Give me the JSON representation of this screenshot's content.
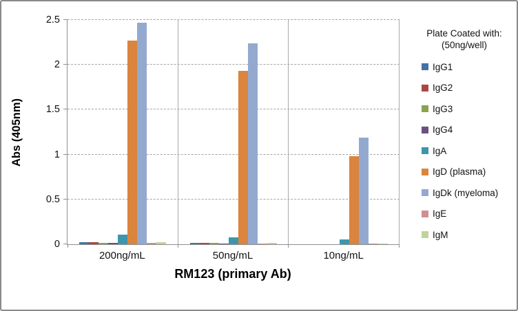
{
  "chart_data": {
    "type": "bar",
    "title": "",
    "xlabel": "RM123 (primary Ab)",
    "ylabel": "Abs (405nm)",
    "ylim": [
      0,
      2.5
    ],
    "ytick_values": [
      0,
      0.5,
      1,
      1.5,
      2,
      2.5
    ],
    "grid": {
      "horizontal": "dashed",
      "vertical_category_separators": true
    },
    "legend": {
      "position": "right",
      "title_line1": "Plate Coated with:",
      "title_line2": "(50ng/well)"
    },
    "categories": [
      "200ng/mL",
      "50ng/mL",
      "10ng/mL"
    ],
    "series": [
      {
        "name": "IgG1",
        "color": "#4572A7",
        "values": [
          0.02,
          0.015,
          0
        ]
      },
      {
        "name": "IgG2",
        "color": "#AA4643",
        "values": [
          0.02,
          0.012,
          0
        ]
      },
      {
        "name": "IgG3",
        "color": "#89A54E",
        "values": [
          0.015,
          0.012,
          0
        ]
      },
      {
        "name": "IgG4",
        "color": "#6B5181",
        "values": [
          0.012,
          0.006,
          0
        ]
      },
      {
        "name": "IgA",
        "color": "#3D96AE",
        "values": [
          0.11,
          0.08,
          0.05
        ]
      },
      {
        "name": "IgD (plasma)",
        "color": "#DB843D",
        "values": [
          2.27,
          1.93,
          0.98
        ]
      },
      {
        "name": "IgDk (myeloma)",
        "color": "#93A9D0",
        "values": [
          2.47,
          2.24,
          1.19
        ]
      },
      {
        "name": "IgE",
        "color": "#D0908F",
        "values": [
          0.012,
          0.007,
          0.005
        ]
      },
      {
        "name": "IgM",
        "color": "#BFD49B",
        "values": [
          0.02,
          0.012,
          0.005
        ]
      }
    ]
  },
  "style": {
    "axis_color": "#8E8E8E",
    "gridline_color": "#A3A3A3",
    "frame_border_color": "#898989",
    "background": "#FFFFFF"
  }
}
